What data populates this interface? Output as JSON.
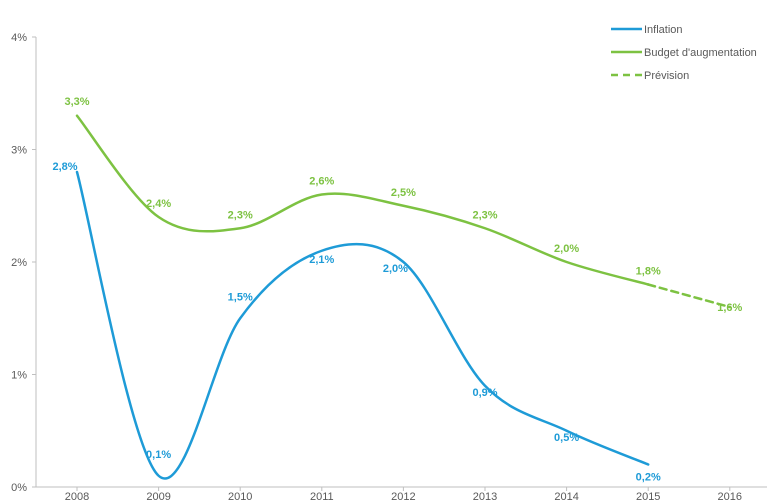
{
  "chart_data": {
    "type": "line",
    "categories": [
      "2008",
      "2009",
      "2010",
      "2011",
      "2012",
      "2013",
      "2014",
      "2015",
      "2016"
    ],
    "ylim": [
      0,
      4
    ],
    "yticks": [
      {
        "value": 0,
        "label": "0%"
      },
      {
        "value": 1,
        "label": "1%"
      },
      {
        "value": 2,
        "label": "2%"
      },
      {
        "value": 3,
        "label": "3%"
      },
      {
        "value": 4,
        "label": "4%"
      }
    ],
    "grid": false,
    "legend_position": "top-right",
    "series": [
      {
        "name": "Inflation",
        "color": "#1e9bd7",
        "style": "solid",
        "values": [
          2.8,
          0.1,
          1.5,
          2.1,
          2.0,
          0.9,
          0.5,
          0.2,
          null
        ],
        "labels": [
          "2,8%",
          "0,1%",
          "1,5%",
          "2,1%",
          "2,0%",
          "0,9%",
          "0,5%",
          "0,2%",
          ""
        ]
      },
      {
        "name": "Budget d'augmentation",
        "color": "#7dc242",
        "style": "solid",
        "values": [
          3.3,
          2.4,
          2.3,
          2.6,
          2.5,
          2.3,
          2.0,
          1.8,
          null
        ],
        "labels": [
          "3,3%",
          "2,4%",
          "2,3%",
          "2,6%",
          "2,5%",
          "2,3%",
          "2,0%",
          "1,8%",
          ""
        ]
      },
      {
        "name": "Prévision",
        "color": "#7dc242",
        "style": "dashed",
        "values": [
          null,
          null,
          null,
          null,
          null,
          null,
          null,
          1.8,
          1.6
        ],
        "labels": [
          "",
          "",
          "",
          "",
          "",
          "",
          "",
          "",
          "1,6%"
        ]
      }
    ]
  }
}
